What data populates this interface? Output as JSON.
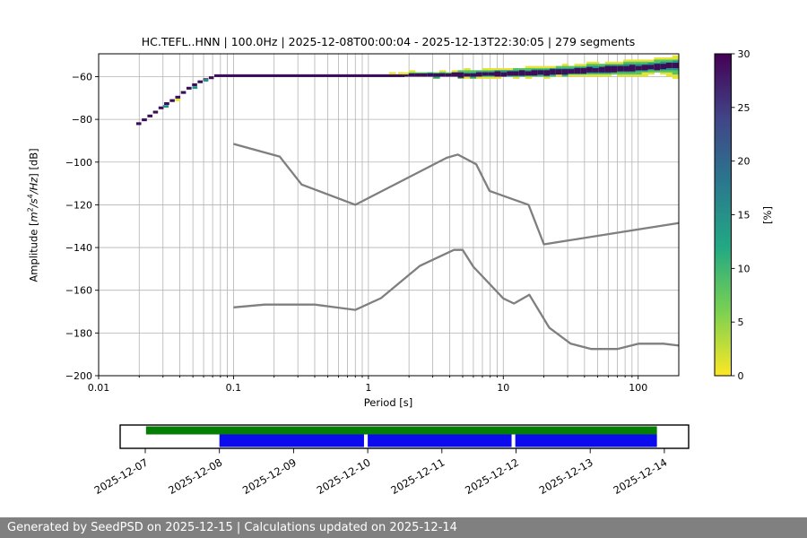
{
  "title": "HC.TEFL..HNN | 100.0Hz | 2025-12-08T00:00:04 - 2025-12-13T22:30:05 | 279 segments",
  "footer": "Generated by SeedPSD on 2025-12-15 | Calculations updated on 2025-12-14",
  "axes": {
    "xlabel": "Period [s]",
    "ylabel": {
      "pre": "Amplitude [",
      "m": "m",
      "m_exp": "2",
      "sl1": "/",
      "s": "s",
      "s_exp": "4",
      "sl2": "/",
      "hz": "Hz",
      "post": "] [dB]"
    },
    "x_tick_values": [
      0.01,
      0.1,
      1,
      10,
      100
    ],
    "x_tick_labels": [
      "0.01",
      "0.1",
      "1",
      "10",
      "100"
    ],
    "y_tick_values": [
      -60,
      -80,
      -100,
      -120,
      -140,
      -160,
      -180,
      -200
    ],
    "y_tick_labels": [
      "−60",
      "−80",
      "−100",
      "−120",
      "−140",
      "−160",
      "−180",
      "−200"
    ]
  },
  "colorbar": {
    "label": "[%]",
    "tick_values": [
      0,
      5,
      10,
      15,
      20,
      25,
      30
    ],
    "tick_labels": [
      "0",
      "5",
      "10",
      "15",
      "20",
      "25",
      "30"
    ],
    "min": 0,
    "max": 30,
    "colormap": "viridis",
    "gradient_top_to_bottom": [
      "#440154",
      "#414487",
      "#2a788e",
      "#22a884",
      "#7ad151",
      "#fde725"
    ]
  },
  "colors": {
    "grid": "#b3b3b3",
    "curve": "#7f7f7f",
    "core": "#3c0d59",
    "teal": "#25958b",
    "green": "#56c261",
    "yellow": "#e4e338",
    "timeline_green": "#047e04",
    "timeline_blue": "#0b0bee",
    "footer_bg": "#808080"
  },
  "chart_data": {
    "type": "heatmap",
    "title": "HC.TEFL..HNN | 100.0Hz | 2025-12-08T00:00:04 - 2025-12-13T22:30:05 | 279 segments",
    "xlabel": "Period [s]",
    "ylabel": "Amplitude [m2/s4/Hz] [dB]",
    "x_scale": "log",
    "xlim": [
      0.01,
      200
    ],
    "ylim": [
      -200,
      -49.3
    ],
    "grid": true,
    "colorbar_label": "[%]",
    "colorbar_range": [
      0,
      30
    ],
    "noise_models": {
      "nhnm": [
        [
          0.1,
          -91.5
        ],
        [
          0.22,
          -97.4
        ],
        [
          0.32,
          -110.5
        ],
        [
          0.8,
          -120.0
        ],
        [
          3.8,
          -98.0
        ],
        [
          4.6,
          -96.5
        ],
        [
          6.3,
          -101.0
        ],
        [
          7.9,
          -113.5
        ],
        [
          15.4,
          -120.0
        ],
        [
          20.0,
          -138.5
        ],
        [
          200.0,
          -128.5
        ]
      ],
      "nlnm": [
        [
          0.1,
          -168.0
        ],
        [
          0.17,
          -166.7
        ],
        [
          0.4,
          -166.7
        ],
        [
          0.8,
          -169.2
        ],
        [
          1.24,
          -163.7
        ],
        [
          2.4,
          -148.6
        ],
        [
          4.3,
          -141.1
        ],
        [
          5.0,
          -141.1
        ],
        [
          6.0,
          -149.0
        ],
        [
          10.0,
          -163.8
        ],
        [
          12.0,
          -166.2
        ],
        [
          15.6,
          -162.1
        ],
        [
          21.9,
          -177.5
        ],
        [
          31.6,
          -185.0
        ],
        [
          45.0,
          -187.5
        ],
        [
          70.0,
          -187.5
        ],
        [
          101.0,
          -185.0
        ],
        [
          154.0,
          -185.0
        ],
        [
          200.0,
          -185.9
        ]
      ]
    },
    "ppsd": {
      "mode_staircase": [
        [
          0.019,
          0.0209,
          -82.0
        ],
        [
          0.0209,
          0.023,
          -80.2
        ],
        [
          0.023,
          0.0253,
          -78.4
        ],
        [
          0.0253,
          0.0278,
          -76.6
        ],
        [
          0.0278,
          0.0306,
          -74.6
        ],
        [
          0.0306,
          0.0337,
          -72.6
        ],
        [
          0.0337,
          0.037,
          -71.2
        ],
        [
          0.037,
          0.0407,
          -69.6
        ],
        [
          0.0407,
          0.0448,
          -67.4
        ],
        [
          0.0448,
          0.0493,
          -65.4
        ],
        [
          0.0493,
          0.0542,
          -63.8
        ],
        [
          0.0542,
          0.0596,
          -62.4
        ],
        [
          0.0596,
          0.0656,
          -61.4
        ],
        [
          0.0656,
          0.0721,
          -60.5
        ]
      ],
      "staircase_accents": [
        {
          "p0": 0.03,
          "p1": 0.033,
          "db": -73.9,
          "color": "teal"
        },
        {
          "p0": 0.037,
          "p1": 0.0405,
          "db": -70.9,
          "color": "yellow"
        },
        {
          "p0": 0.0495,
          "p1": 0.054,
          "db": -65.1,
          "color": "teal"
        },
        {
          "p0": 0.06,
          "p1": 0.065,
          "db": -61.7,
          "color": "teal"
        }
      ],
      "flat_line": {
        "p0": 0.072,
        "p1": 1.85,
        "db_top": -58.9,
        "db_bot": -60.2
      },
      "line_accents": [
        {
          "p0": 1.42,
          "p1": 1.6,
          "db_top": -57.9,
          "db_bot": -58.9,
          "color": "yellow"
        },
        {
          "p0": 1.66,
          "p1": 1.84,
          "db_top": -57.9,
          "db_bot": -58.9,
          "color": "yellow"
        }
      ],
      "band": {
        "p": [
          1.8,
          3.0,
          5.0,
          8.0,
          12.0,
          20.0,
          35.0,
          60.0,
          100.0,
          150.0,
          200.0
        ],
        "yellow_top": [
          -57.9,
          -57.5,
          -57.1,
          -56.5,
          -55.9,
          -55.1,
          -54.1,
          -53.1,
          -52.1,
          -51.3,
          -50.3
        ],
        "core_top": [
          -58.8,
          -58.6,
          -58.3,
          -57.9,
          -57.5,
          -56.9,
          -56.2,
          -55.4,
          -54.7,
          -54.1,
          -53.5
        ],
        "core_bot": [
          -60.2,
          -60.2,
          -60.1,
          -59.9,
          -59.7,
          -59.3,
          -58.7,
          -57.9,
          -57.1,
          -56.5,
          -55.8
        ],
        "yellow_bot": [
          -60.6,
          -60.8,
          -60.9,
          -60.9,
          -60.8,
          -60.5,
          -60.2,
          -59.8,
          -59.3,
          -58.9,
          -60.9
        ]
      }
    }
  },
  "timeline": {
    "dates": [
      "2025-12-07",
      "2025-12-08",
      "2025-12-09",
      "2025-12-10",
      "2025-12-11",
      "2025-12-12",
      "2025-12-13",
      "2025-12-14"
    ],
    "green_bar_days": [
      0.01,
      6.9
    ],
    "blue_bar_days": [
      1.0,
      6.9
    ],
    "blue_gaps_days": [
      [
        2.95,
        3.0
      ],
      [
        4.94,
        4.99
      ]
    ]
  }
}
